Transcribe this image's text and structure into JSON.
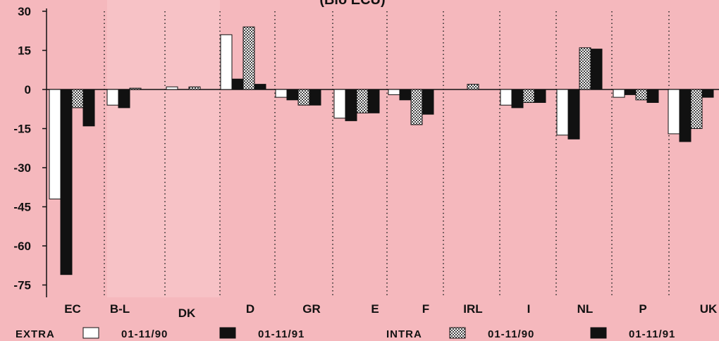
{
  "chart_data": {
    "type": "bar",
    "title": "(Bio ECU)",
    "ylim": [
      -82,
      30
    ],
    "yticks": [
      30,
      15,
      0,
      -15,
      -30,
      -45,
      -60,
      -75
    ],
    "ytick_labels": [
      "30",
      "15",
      "0",
      "-15",
      "-30",
      "-45",
      "-60",
      "-75"
    ],
    "categories": [
      "EC",
      "B-L",
      "DK",
      "D",
      "GR",
      "E",
      "F",
      "IRL",
      "I",
      "NL",
      "P",
      "UK"
    ],
    "series": [
      {
        "name": "01-11/90",
        "group": "EXTRA",
        "style": "hollow",
        "values": [
          -42,
          -6,
          1,
          21,
          -3,
          -11,
          -2,
          0,
          -6,
          -17.5,
          -3,
          -17
        ]
      },
      {
        "name": "01-11/91",
        "group": "EXTRA",
        "style": "black",
        "values": [
          -71,
          -7,
          0,
          4,
          -4,
          -12,
          -4,
          0,
          -7,
          -19,
          -2,
          -20
        ]
      },
      {
        "name": "01-11/90",
        "group": "INTRA",
        "style": "hatched",
        "values": [
          -7,
          0.5,
          1,
          24,
          -6,
          -9,
          -13.5,
          2,
          -5,
          16,
          -4,
          -15
        ]
      },
      {
        "name": "01-11/91",
        "group": "INTRA",
        "style": "black",
        "values": [
          -14,
          0,
          0,
          2,
          -6,
          -9,
          -9.5,
          0,
          -5,
          15.5,
          -5,
          -3
        ]
      }
    ],
    "legend": {
      "groups": [
        {
          "label": "EXTRA",
          "items": [
            {
              "style": "hollow",
              "label": "01-11/90"
            },
            {
              "style": "black",
              "label": "01-11/91"
            }
          ]
        },
        {
          "label": "INTRA",
          "items": [
            {
              "style": "hatched",
              "label": "01-11/90"
            },
            {
              "style": "black",
              "label": "01-11/91"
            }
          ]
        }
      ],
      "position": "bottom"
    },
    "colors": {
      "background": "#f5b8bd",
      "bar_dark": "#111111",
      "bar_hollow": "#ffffff",
      "shade_band": "#f7c2c6"
    },
    "grid": "vertical dotted separators"
  }
}
